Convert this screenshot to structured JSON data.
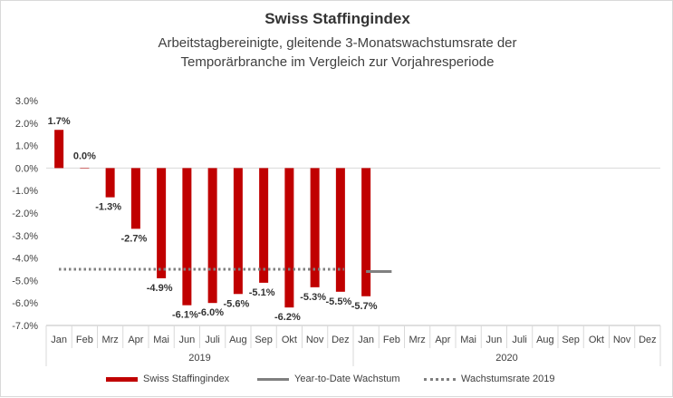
{
  "chart_data": {
    "type": "bar",
    "title": "Swiss Staffingindex",
    "subtitle_line1": "Arbeitstagbereinigte, gleitende 3-Monatswachstumsrate der",
    "subtitle_line2": "Temporärbranche im Vergleich zur Vorjahresperiode",
    "y_ticks": [
      "3.0%",
      "2.0%",
      "1.0%",
      "0.0%",
      "-1.0%",
      "-2.0%",
      "-3.0%",
      "-4.0%",
      "-5.0%",
      "-6.0%",
      "-7.0%"
    ],
    "ylim": [
      -7,
      3
    ],
    "groups": [
      {
        "label": "2019",
        "months": [
          "Jan",
          "Feb",
          "Mrz",
          "Apr",
          "Mai",
          "Jun",
          "Juli",
          "Aug",
          "Sep",
          "Okt",
          "Nov",
          "Dez"
        ]
      },
      {
        "label": "2020",
        "months": [
          "Jan",
          "Feb",
          "Mrz",
          "Apr",
          "Mai",
          "Jun",
          "Juli",
          "Aug",
          "Sep",
          "Okt",
          "Nov",
          "Dez"
        ]
      }
    ],
    "series": [
      {
        "name": "Swiss Staffingindex",
        "kind": "bar",
        "color": "#c00000",
        "values": [
          1.7,
          0.0,
          -1.3,
          -2.7,
          -4.9,
          -6.1,
          -6.0,
          -5.6,
          -5.1,
          -6.2,
          -5.3,
          -5.5,
          -5.7,
          null,
          null,
          null,
          null,
          null,
          null,
          null,
          null,
          null,
          null,
          null
        ],
        "labels": [
          "1.7%",
          "0.0%",
          "-1.3%",
          "-2.7%",
          "-4.9%",
          "-6.1%",
          "-6.0%",
          "-5.6%",
          "-5.1%",
          "-6.2%",
          "-5.3%",
          "-5.5%",
          "-5.7%",
          "",
          "",
          "",
          "",
          "",
          "",
          "",
          "",
          "",
          "",
          ""
        ]
      },
      {
        "name": "Year-to-Date Wachstum",
        "kind": "line",
        "color": "#808080",
        "values": [
          null,
          null,
          null,
          null,
          null,
          null,
          null,
          null,
          null,
          null,
          null,
          null,
          -4.6,
          -4.6,
          null,
          null,
          null,
          null,
          null,
          null,
          null,
          null,
          null,
          null
        ]
      },
      {
        "name": "Wachstumsrate 2019",
        "kind": "dotted-line",
        "color": "#808080",
        "values": [
          -4.5,
          -4.5,
          -4.5,
          -4.5,
          -4.5,
          -4.5,
          -4.5,
          -4.5,
          -4.5,
          -4.5,
          -4.5,
          -4.5,
          null,
          null,
          null,
          null,
          null,
          null,
          null,
          null,
          null,
          null,
          null,
          null
        ]
      }
    ],
    "legend": [
      "Swiss Staffingindex",
      "Year-to-Date Wachstum",
      "Wachstumsrate 2019"
    ]
  }
}
